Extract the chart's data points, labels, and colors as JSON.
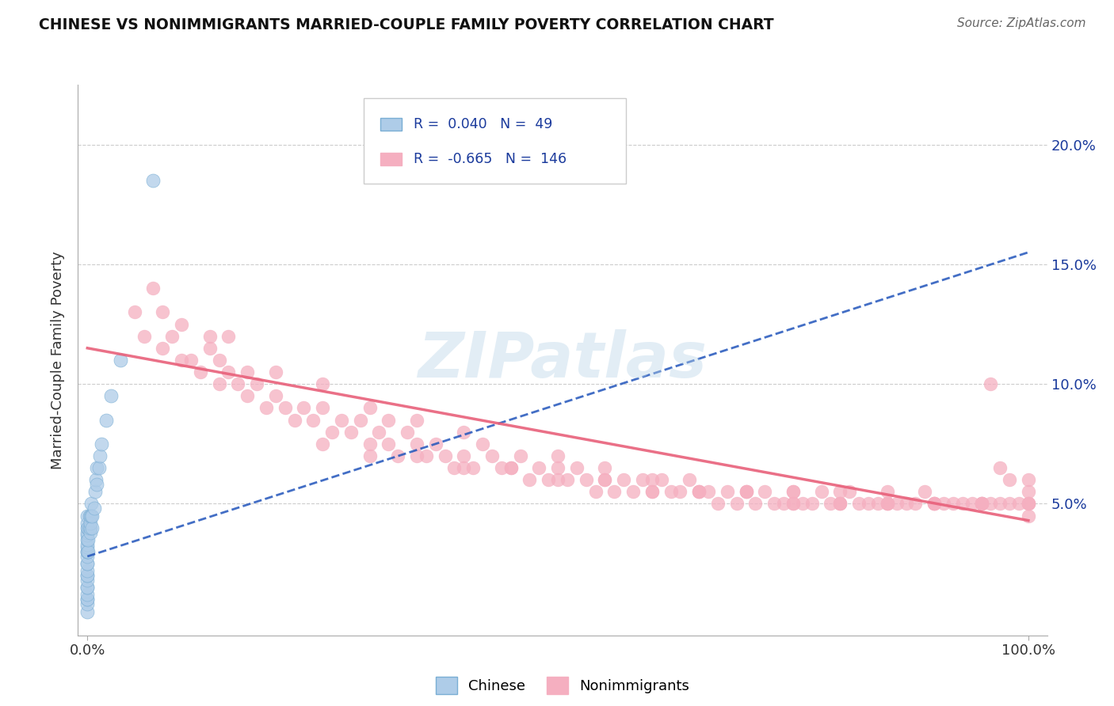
{
  "title": "CHINESE VS NONIMMIGRANTS MARRIED-COUPLE FAMILY POVERTY CORRELATION CHART",
  "source": "Source: ZipAtlas.com",
  "ylabel": "Married-Couple Family Poverty",
  "yticks": [
    0.05,
    0.1,
    0.15,
    0.2
  ],
  "ytick_labels": [
    "5.0%",
    "10.0%",
    "15.0%",
    "20.0%"
  ],
  "xlim": [
    -0.01,
    1.02
  ],
  "ylim": [
    -0.005,
    0.225
  ],
  "chinese_color": "#aecce8",
  "chinese_edge_color": "#7aaed4",
  "nonimmigrant_color": "#f5afc0",
  "nonimmigrant_edge_color": "#f5afc0",
  "chinese_trend_color": "#2255bb",
  "chinese_trend_style": "--",
  "nonimmigrant_trend_color": "#e8607a",
  "nonimmigrant_trend_style": "-",
  "chinese_R": 0.04,
  "chinese_N": 49,
  "nonimmigrant_R": -0.665,
  "nonimmigrant_N": 146,
  "watermark_text": "ZIPatlas",
  "watermark_color": "#b8d4e8",
  "grid_color": "#cccccc",
  "background_color": "#ffffff",
  "legend_label_chinese": "Chinese",
  "legend_label_nonimmigrant": "Nonimmigrants",
  "chinese_trend_x0": 0.0,
  "chinese_trend_y0": 0.028,
  "chinese_trend_x1": 1.0,
  "chinese_trend_y1": 0.155,
  "nonimmigrant_trend_x0": 0.0,
  "nonimmigrant_trend_y0": 0.115,
  "nonimmigrant_trend_x1": 1.0,
  "nonimmigrant_trend_y1": 0.043,
  "chinese_x": [
    0.0,
    0.0,
    0.0,
    0.0,
    0.0,
    0.0,
    0.0,
    0.0,
    0.0,
    0.0,
    0.0,
    0.0,
    0.0,
    0.0,
    0.0,
    0.0,
    0.0,
    0.0,
    0.0,
    0.0,
    0.0,
    0.0,
    0.0,
    0.0,
    0.001,
    0.001,
    0.001,
    0.002,
    0.002,
    0.003,
    0.003,
    0.003,
    0.003,
    0.004,
    0.004,
    0.005,
    0.005,
    0.007,
    0.008,
    0.009,
    0.01,
    0.01,
    0.012,
    0.013,
    0.015,
    0.02,
    0.025,
    0.035,
    0.07
  ],
  "chinese_y": [
    0.005,
    0.008,
    0.01,
    0.01,
    0.012,
    0.015,
    0.015,
    0.018,
    0.02,
    0.02,
    0.022,
    0.025,
    0.025,
    0.028,
    0.03,
    0.03,
    0.032,
    0.033,
    0.035,
    0.037,
    0.038,
    0.04,
    0.042,
    0.045,
    0.03,
    0.035,
    0.04,
    0.04,
    0.045,
    0.038,
    0.04,
    0.042,
    0.045,
    0.045,
    0.05,
    0.04,
    0.045,
    0.048,
    0.055,
    0.06,
    0.058,
    0.065,
    0.065,
    0.07,
    0.075,
    0.085,
    0.095,
    0.11,
    0.185
  ],
  "nonimmigrant_x": [
    0.05,
    0.06,
    0.07,
    0.08,
    0.08,
    0.09,
    0.1,
    0.1,
    0.11,
    0.12,
    0.13,
    0.13,
    0.14,
    0.14,
    0.15,
    0.15,
    0.16,
    0.17,
    0.17,
    0.18,
    0.19,
    0.2,
    0.2,
    0.21,
    0.22,
    0.23,
    0.24,
    0.25,
    0.25,
    0.26,
    0.27,
    0.28,
    0.29,
    0.3,
    0.3,
    0.31,
    0.32,
    0.32,
    0.33,
    0.34,
    0.35,
    0.35,
    0.36,
    0.37,
    0.38,
    0.39,
    0.4,
    0.4,
    0.41,
    0.42,
    0.43,
    0.44,
    0.45,
    0.46,
    0.47,
    0.48,
    0.49,
    0.5,
    0.51,
    0.52,
    0.53,
    0.54,
    0.55,
    0.56,
    0.57,
    0.58,
    0.59,
    0.6,
    0.61,
    0.62,
    0.63,
    0.64,
    0.65,
    0.66,
    0.67,
    0.68,
    0.69,
    0.7,
    0.71,
    0.72,
    0.73,
    0.74,
    0.75,
    0.76,
    0.77,
    0.78,
    0.79,
    0.8,
    0.81,
    0.82,
    0.83,
    0.84,
    0.85,
    0.86,
    0.87,
    0.88,
    0.89,
    0.9,
    0.91,
    0.92,
    0.93,
    0.94,
    0.95,
    0.96,
    0.97,
    0.98,
    0.99,
    1.0,
    0.25,
    0.3,
    0.35,
    0.4,
    0.45,
    0.5,
    0.55,
    0.6,
    0.65,
    0.7,
    0.75,
    0.8,
    0.85,
    0.9,
    0.95,
    1.0,
    0.5,
    0.55,
    0.6,
    0.65,
    0.7,
    0.75,
    0.8,
    0.85,
    0.9,
    0.95,
    1.0,
    0.75,
    0.8,
    0.85,
    0.9,
    0.95,
    1.0,
    1.0,
    1.0,
    0.98,
    0.97,
    0.96
  ],
  "nonimmigrant_y": [
    0.13,
    0.12,
    0.14,
    0.115,
    0.13,
    0.12,
    0.11,
    0.125,
    0.11,
    0.105,
    0.12,
    0.115,
    0.1,
    0.11,
    0.105,
    0.12,
    0.1,
    0.095,
    0.105,
    0.1,
    0.09,
    0.095,
    0.105,
    0.09,
    0.085,
    0.09,
    0.085,
    0.09,
    0.1,
    0.08,
    0.085,
    0.08,
    0.085,
    0.075,
    0.09,
    0.08,
    0.075,
    0.085,
    0.07,
    0.08,
    0.075,
    0.085,
    0.07,
    0.075,
    0.07,
    0.065,
    0.07,
    0.08,
    0.065,
    0.075,
    0.07,
    0.065,
    0.065,
    0.07,
    0.06,
    0.065,
    0.06,
    0.065,
    0.06,
    0.065,
    0.06,
    0.055,
    0.06,
    0.055,
    0.06,
    0.055,
    0.06,
    0.055,
    0.06,
    0.055,
    0.055,
    0.06,
    0.055,
    0.055,
    0.05,
    0.055,
    0.05,
    0.055,
    0.05,
    0.055,
    0.05,
    0.05,
    0.055,
    0.05,
    0.05,
    0.055,
    0.05,
    0.05,
    0.055,
    0.05,
    0.05,
    0.05,
    0.055,
    0.05,
    0.05,
    0.05,
    0.055,
    0.05,
    0.05,
    0.05,
    0.05,
    0.05,
    0.05,
    0.05,
    0.05,
    0.05,
    0.05,
    0.045,
    0.075,
    0.07,
    0.07,
    0.065,
    0.065,
    0.06,
    0.06,
    0.055,
    0.055,
    0.055,
    0.05,
    0.05,
    0.05,
    0.05,
    0.05,
    0.05,
    0.07,
    0.065,
    0.06,
    0.055,
    0.055,
    0.05,
    0.05,
    0.05,
    0.05,
    0.05,
    0.05,
    0.055,
    0.055,
    0.05,
    0.05,
    0.05,
    0.05,
    0.055,
    0.06,
    0.06,
    0.065,
    0.1
  ]
}
